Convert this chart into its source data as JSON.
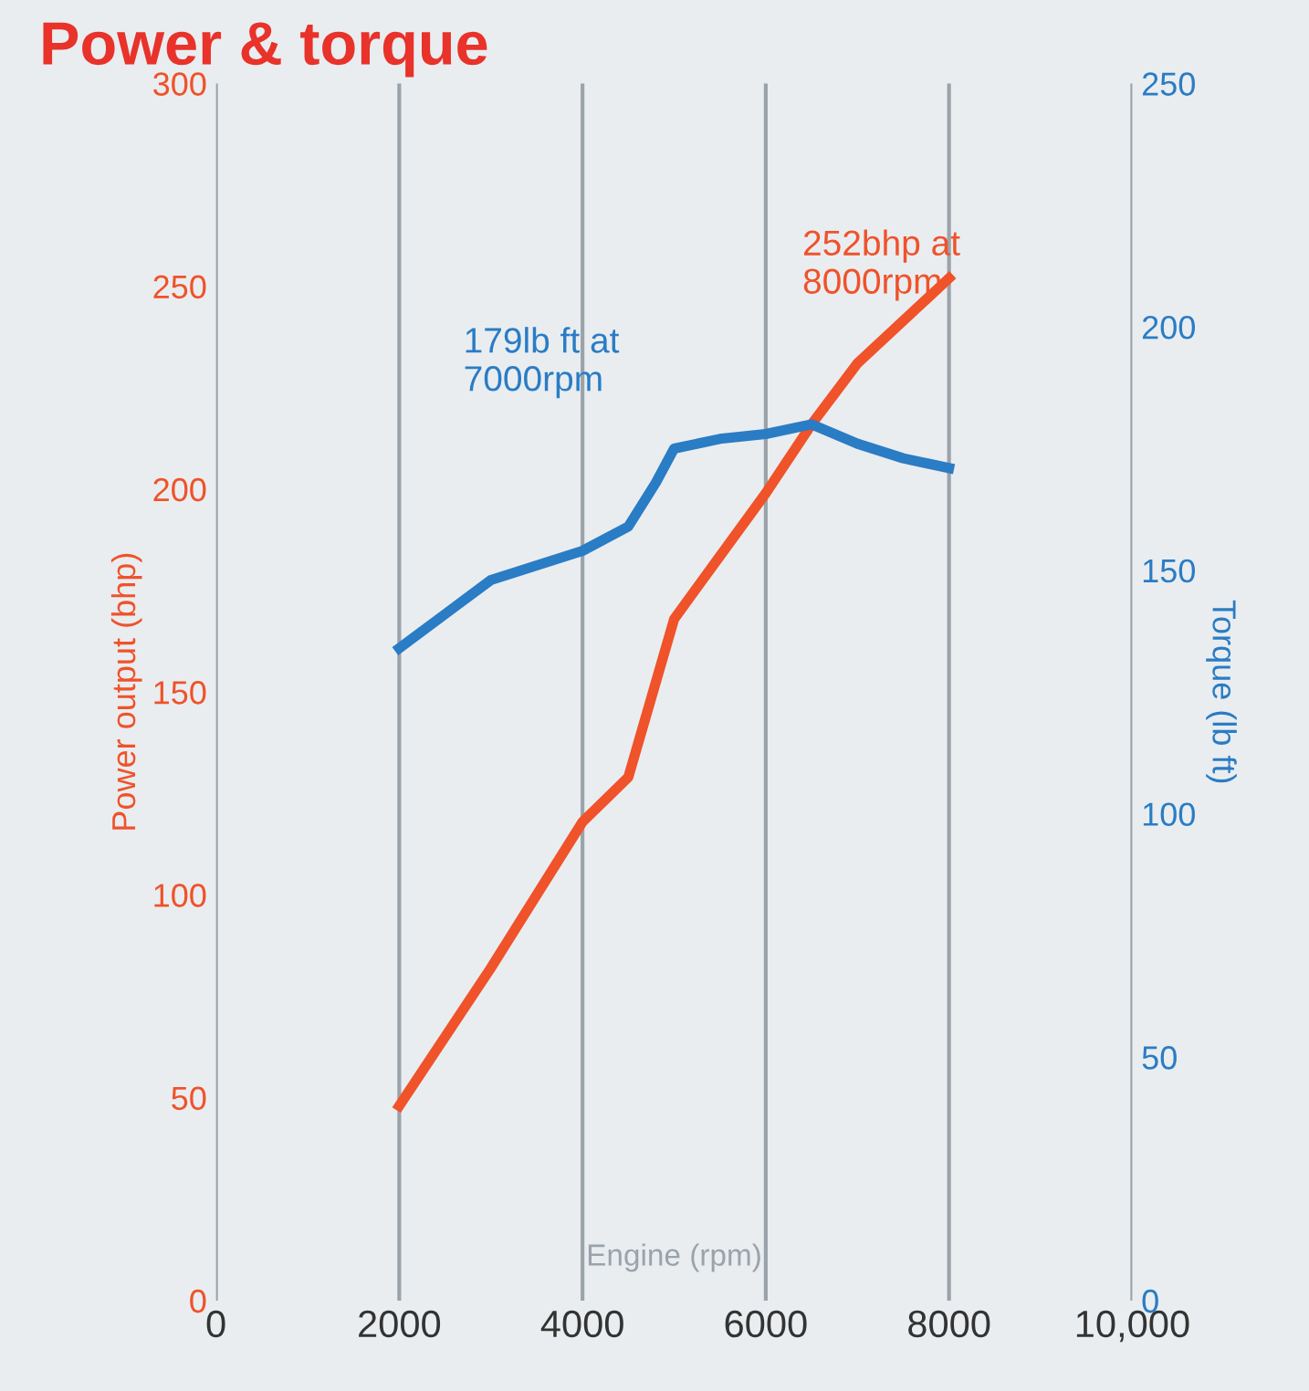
{
  "chart_data": {
    "type": "line",
    "title": "Power & torque",
    "xlabel": "Engine (rpm)",
    "ylabel": "Power output (bhp)",
    "y2label": "Torque (lb ft)",
    "series": [
      {
        "name": null,
        "color": "#f0522a",
        "x": [
          2000,
          3000,
          4000,
          4500,
          5000,
          6000,
          6500,
          7000,
          8000
        ],
        "values": [
          48,
          82,
          118,
          129,
          168,
          199,
          216,
          231,
          252
        ]
      },
      {
        "name": null,
        "color": "#2a7cc4",
        "axis": "y2",
        "x": [
          2000,
          2500,
          3000,
          3500,
          4000,
          4500,
          4800,
          5000,
          5500,
          6000,
          6500,
          7000,
          7500,
          8000
        ],
        "values": [
          134,
          141,
          148,
          151,
          154,
          159,
          168,
          175,
          177,
          178,
          180,
          176,
          173,
          171
        ]
      }
    ],
    "xlim": [
      0,
      10000
    ],
    "xticks": [
      0,
      2000,
      4000,
      6000,
      8000,
      {
        "value": 10000,
        "label": "10,000"
      }
    ],
    "ylim": [
      0,
      300
    ],
    "yticks": [
      0,
      50,
      100,
      150,
      200,
      250,
      300
    ],
    "y2lim": [
      0,
      250
    ],
    "y2ticks": [
      0,
      50,
      100,
      150,
      200,
      250
    ],
    "grid": "x",
    "legend": false,
    "marker": "none",
    "line_style": "solid",
    "annotations": [
      "252bhp at\n8000rpm",
      "179lb ft at\n7000rpm"
    ]
  }
}
